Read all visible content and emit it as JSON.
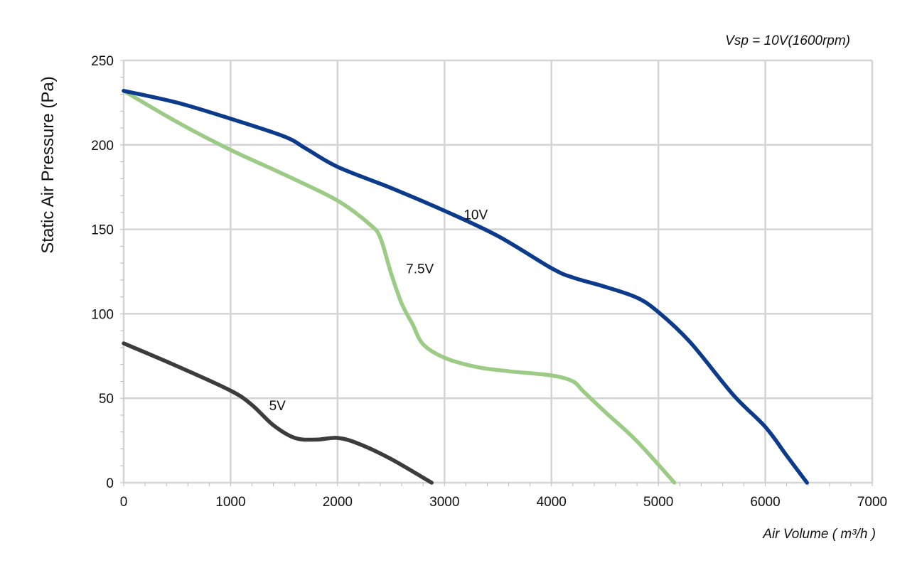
{
  "chart_data": {
    "type": "line",
    "annotation": "Vsp = 10V(1600rpm)",
    "xlabel": "Air Volume ( m³/h )",
    "ylabel": "Static Air Pressure  (Pa)",
    "xlim": [
      0,
      7000
    ],
    "ylim": [
      0,
      250
    ],
    "xticks": [
      0,
      1000,
      2000,
      3000,
      4000,
      5000,
      6000,
      7000
    ],
    "yticks": [
      0,
      50,
      100,
      150,
      200,
      250
    ],
    "grid": true,
    "legend": "none",
    "series": [
      {
        "name": "10V",
        "color": "#0d3b8c",
        "points": [
          [
            0,
            232
          ],
          [
            500,
            225
          ],
          [
            1000,
            215.5
          ],
          [
            1500,
            205
          ],
          [
            1700,
            198
          ],
          [
            2000,
            187
          ],
          [
            2500,
            174.5
          ],
          [
            3000,
            161
          ],
          [
            3500,
            146
          ],
          [
            4000,
            127
          ],
          [
            4200,
            121.5
          ],
          [
            4500,
            116
          ],
          [
            4800,
            109.5
          ],
          [
            5000,
            101
          ],
          [
            5300,
            83
          ],
          [
            5700,
            52
          ],
          [
            6000,
            33
          ],
          [
            6200,
            16
          ],
          [
            6390,
            0
          ]
        ]
      },
      {
        "name": "7.5V",
        "color": "#9ccb86",
        "points": [
          [
            0,
            232
          ],
          [
            500,
            213.5
          ],
          [
            1000,
            197
          ],
          [
            1500,
            182.5
          ],
          [
            2000,
            167
          ],
          [
            2300,
            153
          ],
          [
            2400,
            145
          ],
          [
            2500,
            124
          ],
          [
            2600,
            106
          ],
          [
            2700,
            94
          ],
          [
            2800,
            82
          ],
          [
            3000,
            74
          ],
          [
            3300,
            68.5
          ],
          [
            3600,
            66
          ],
          [
            4000,
            63.5
          ],
          [
            4200,
            60
          ],
          [
            4300,
            54
          ],
          [
            4500,
            42
          ],
          [
            4800,
            24.5
          ],
          [
            5150,
            0
          ]
        ]
      },
      {
        "name": "5V",
        "color": "#3c3c3c",
        "points": [
          [
            0,
            82.5
          ],
          [
            500,
            69
          ],
          [
            1000,
            54.5
          ],
          [
            1200,
            46
          ],
          [
            1400,
            34
          ],
          [
            1600,
            26.5
          ],
          [
            1800,
            25.5
          ],
          [
            2000,
            26.5
          ],
          [
            2200,
            23
          ],
          [
            2500,
            14
          ],
          [
            2880,
            0
          ]
        ]
      }
    ],
    "series_label_points": [
      {
        "text": "10V",
        "x": 3180,
        "y": 156
      },
      {
        "text": "7.5V",
        "x": 2640,
        "y": 124
      },
      {
        "text": "5V",
        "x": 1360,
        "y": 43
      }
    ]
  }
}
